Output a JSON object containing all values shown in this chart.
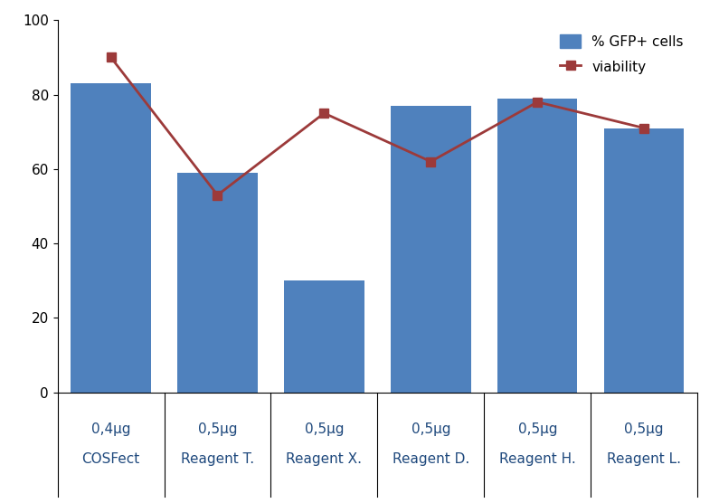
{
  "categories_line1": [
    "0,4μg",
    "0,5μg",
    "0,5μg",
    "0,5μg",
    "0,5μg",
    "0,5μg"
  ],
  "categories_line2": [
    "COSFect",
    "Reagent T.",
    "Reagent X.",
    "Reagent D.",
    "Reagent H.",
    "Reagent L."
  ],
  "bar_values": [
    83,
    59,
    30,
    77,
    79,
    71
  ],
  "line_values": [
    90,
    53,
    75,
    62,
    78,
    71
  ],
  "bar_color": "#4F81BD",
  "line_color": "#9C3A3A",
  "marker_style": "s",
  "marker_size": 7,
  "ylim": [
    0,
    100
  ],
  "yticks": [
    0,
    20,
    40,
    60,
    80,
    100
  ],
  "legend_bar_label": "% GFP+ cells",
  "legend_line_label": "viability",
  "background_color": "#ffffff",
  "bar_width": 0.75,
  "line_width": 2.0,
  "tick_fontsize": 11,
  "label_fontsize": 11,
  "legend_fontsize": 11
}
